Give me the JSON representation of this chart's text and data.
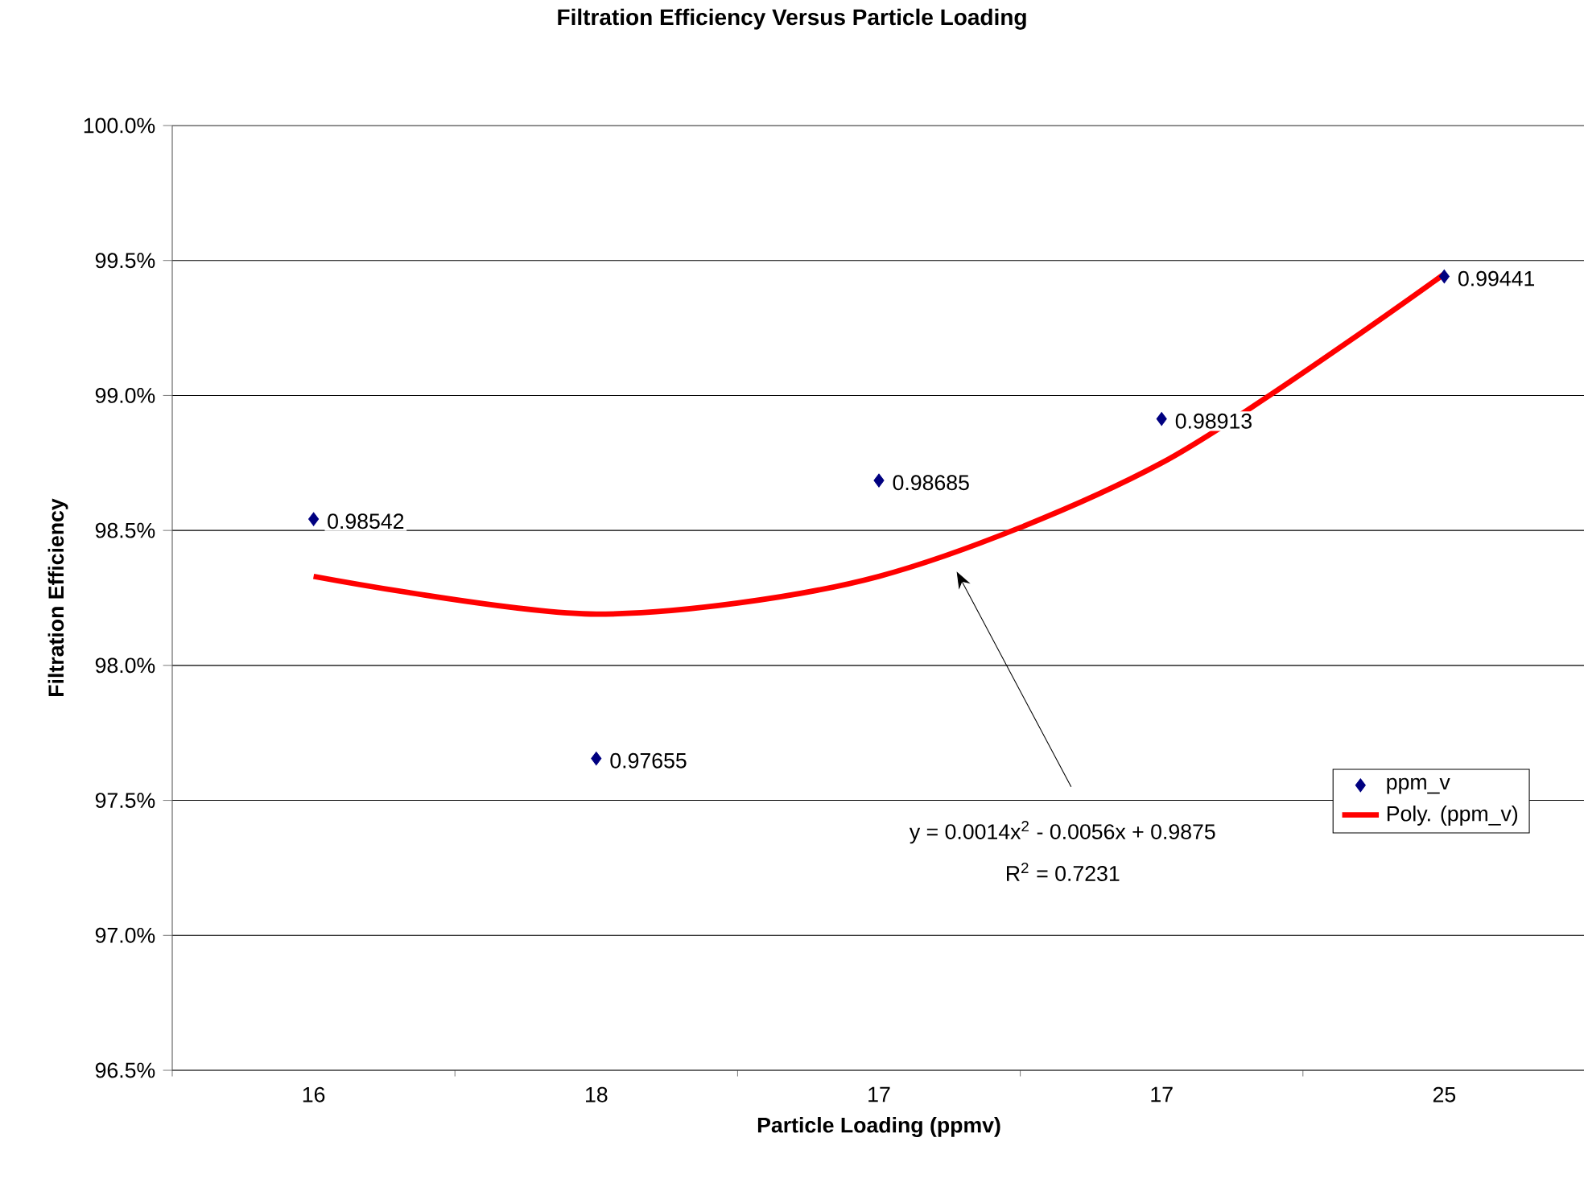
{
  "chart_data": {
    "type": "scatter",
    "title": "Filtration Efficiency Versus Particle Loading",
    "xlabel": "Particle Loading (ppmv)",
    "ylabel": "Filtration Efficiency",
    "categories": [
      "16",
      "18",
      "17",
      "17",
      "25"
    ],
    "series": [
      {
        "name": "ppm_v",
        "color": "#000080",
        "marker": "diamond",
        "values": [
          0.98542,
          0.97655,
          0.98685,
          0.98913,
          0.99441
        ],
        "value_labels": [
          "0.98542",
          "0.97655",
          "0.98685",
          "0.98913",
          "0.99441"
        ]
      },
      {
        "name": "Poly. (ppm_v)",
        "type": "line",
        "color": "#ff0000",
        "marker": "none",
        "values": [
          0.9833,
          0.9819,
          0.9833,
          0.9875,
          0.9945
        ]
      }
    ],
    "ylim": [
      0.965,
      1.0
    ],
    "yticks": [
      {
        "value": 0.965,
        "label": "96.5%"
      },
      {
        "value": 0.97,
        "label": "97.0%"
      },
      {
        "value": 0.975,
        "label": "97.5%"
      },
      {
        "value": 0.98,
        "label": "98.0%"
      },
      {
        "value": 0.985,
        "label": "98.5%"
      },
      {
        "value": 0.99,
        "label": "99.0%"
      },
      {
        "value": 0.995,
        "label": "99.5%"
      },
      {
        "value": 1.0,
        "label": "100.0%"
      }
    ],
    "grid": "y",
    "legend": "right",
    "annotations": [
      "y = 0.0014x$^{2}$ - 0.0056x + 0.9875",
      "R$^{2}$ = 0.7231"
    ]
  }
}
